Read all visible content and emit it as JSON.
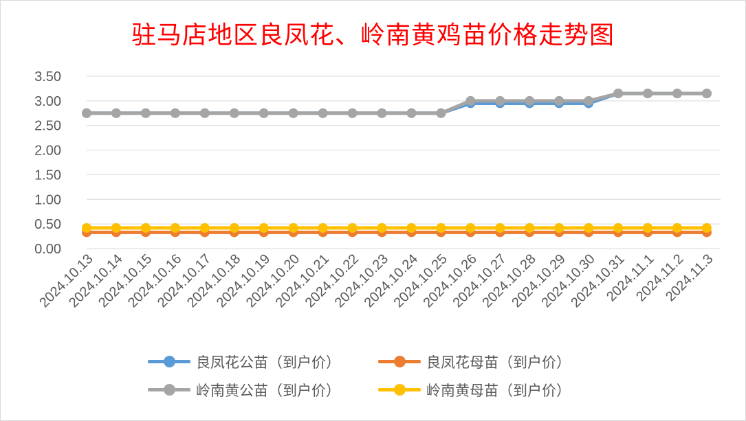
{
  "chart_data": {
    "type": "line",
    "title": "驻马店地区良凤花、岭南黄鸡苗价格走势图",
    "categories": [
      "2024.10.13",
      "2024.10.14",
      "2024.10.15",
      "2024.10.16",
      "2024.10.17",
      "2024.10.18",
      "2024.10.19",
      "2024.10.20",
      "2024.10.21",
      "2024.10.22",
      "2024.10.23",
      "2024.10.24",
      "2024.10.25",
      "2024.10.26",
      "2024.10.27",
      "2024.10.28",
      "2024.10.29",
      "2024.10.30",
      "2024.10.31",
      "2024.11.1",
      "2024.11.2",
      "2024.11.3"
    ],
    "yticks": [
      "0.00",
      "0.50",
      "1.00",
      "1.50",
      "2.00",
      "2.50",
      "3.00",
      "3.50"
    ],
    "ylim": [
      0,
      3.5
    ],
    "grid": true,
    "legend_position": "bottom",
    "series": [
      {
        "name": "良凤花公苗（到户价）",
        "color": "#5b9bd5",
        "values": [
          2.75,
          2.75,
          2.75,
          2.75,
          2.75,
          2.75,
          2.75,
          2.75,
          2.75,
          2.75,
          2.75,
          2.75,
          2.75,
          2.95,
          2.95,
          2.95,
          2.95,
          2.95,
          3.15,
          3.15,
          3.15,
          3.15
        ]
      },
      {
        "name": "良凤花母苗（到户价）",
        "color": "#ed7d31",
        "values": [
          0.33,
          0.33,
          0.33,
          0.33,
          0.33,
          0.33,
          0.33,
          0.33,
          0.33,
          0.33,
          0.33,
          0.33,
          0.33,
          0.33,
          0.33,
          0.33,
          0.33,
          0.33,
          0.33,
          0.33,
          0.33,
          0.33
        ]
      },
      {
        "name": "岭南黄公苗（到户价）",
        "color": "#a5a5a5",
        "values": [
          2.75,
          2.75,
          2.75,
          2.75,
          2.75,
          2.75,
          2.75,
          2.75,
          2.75,
          2.75,
          2.75,
          2.75,
          2.75,
          3.0,
          3.0,
          3.0,
          3.0,
          3.0,
          3.15,
          3.15,
          3.15,
          3.15
        ]
      },
      {
        "name": "岭南黄母苗（到户价）",
        "color": "#ffc000",
        "values": [
          0.42,
          0.42,
          0.42,
          0.42,
          0.42,
          0.42,
          0.42,
          0.42,
          0.42,
          0.42,
          0.42,
          0.42,
          0.42,
          0.42,
          0.42,
          0.42,
          0.42,
          0.42,
          0.42,
          0.42,
          0.42,
          0.42
        ]
      }
    ]
  }
}
